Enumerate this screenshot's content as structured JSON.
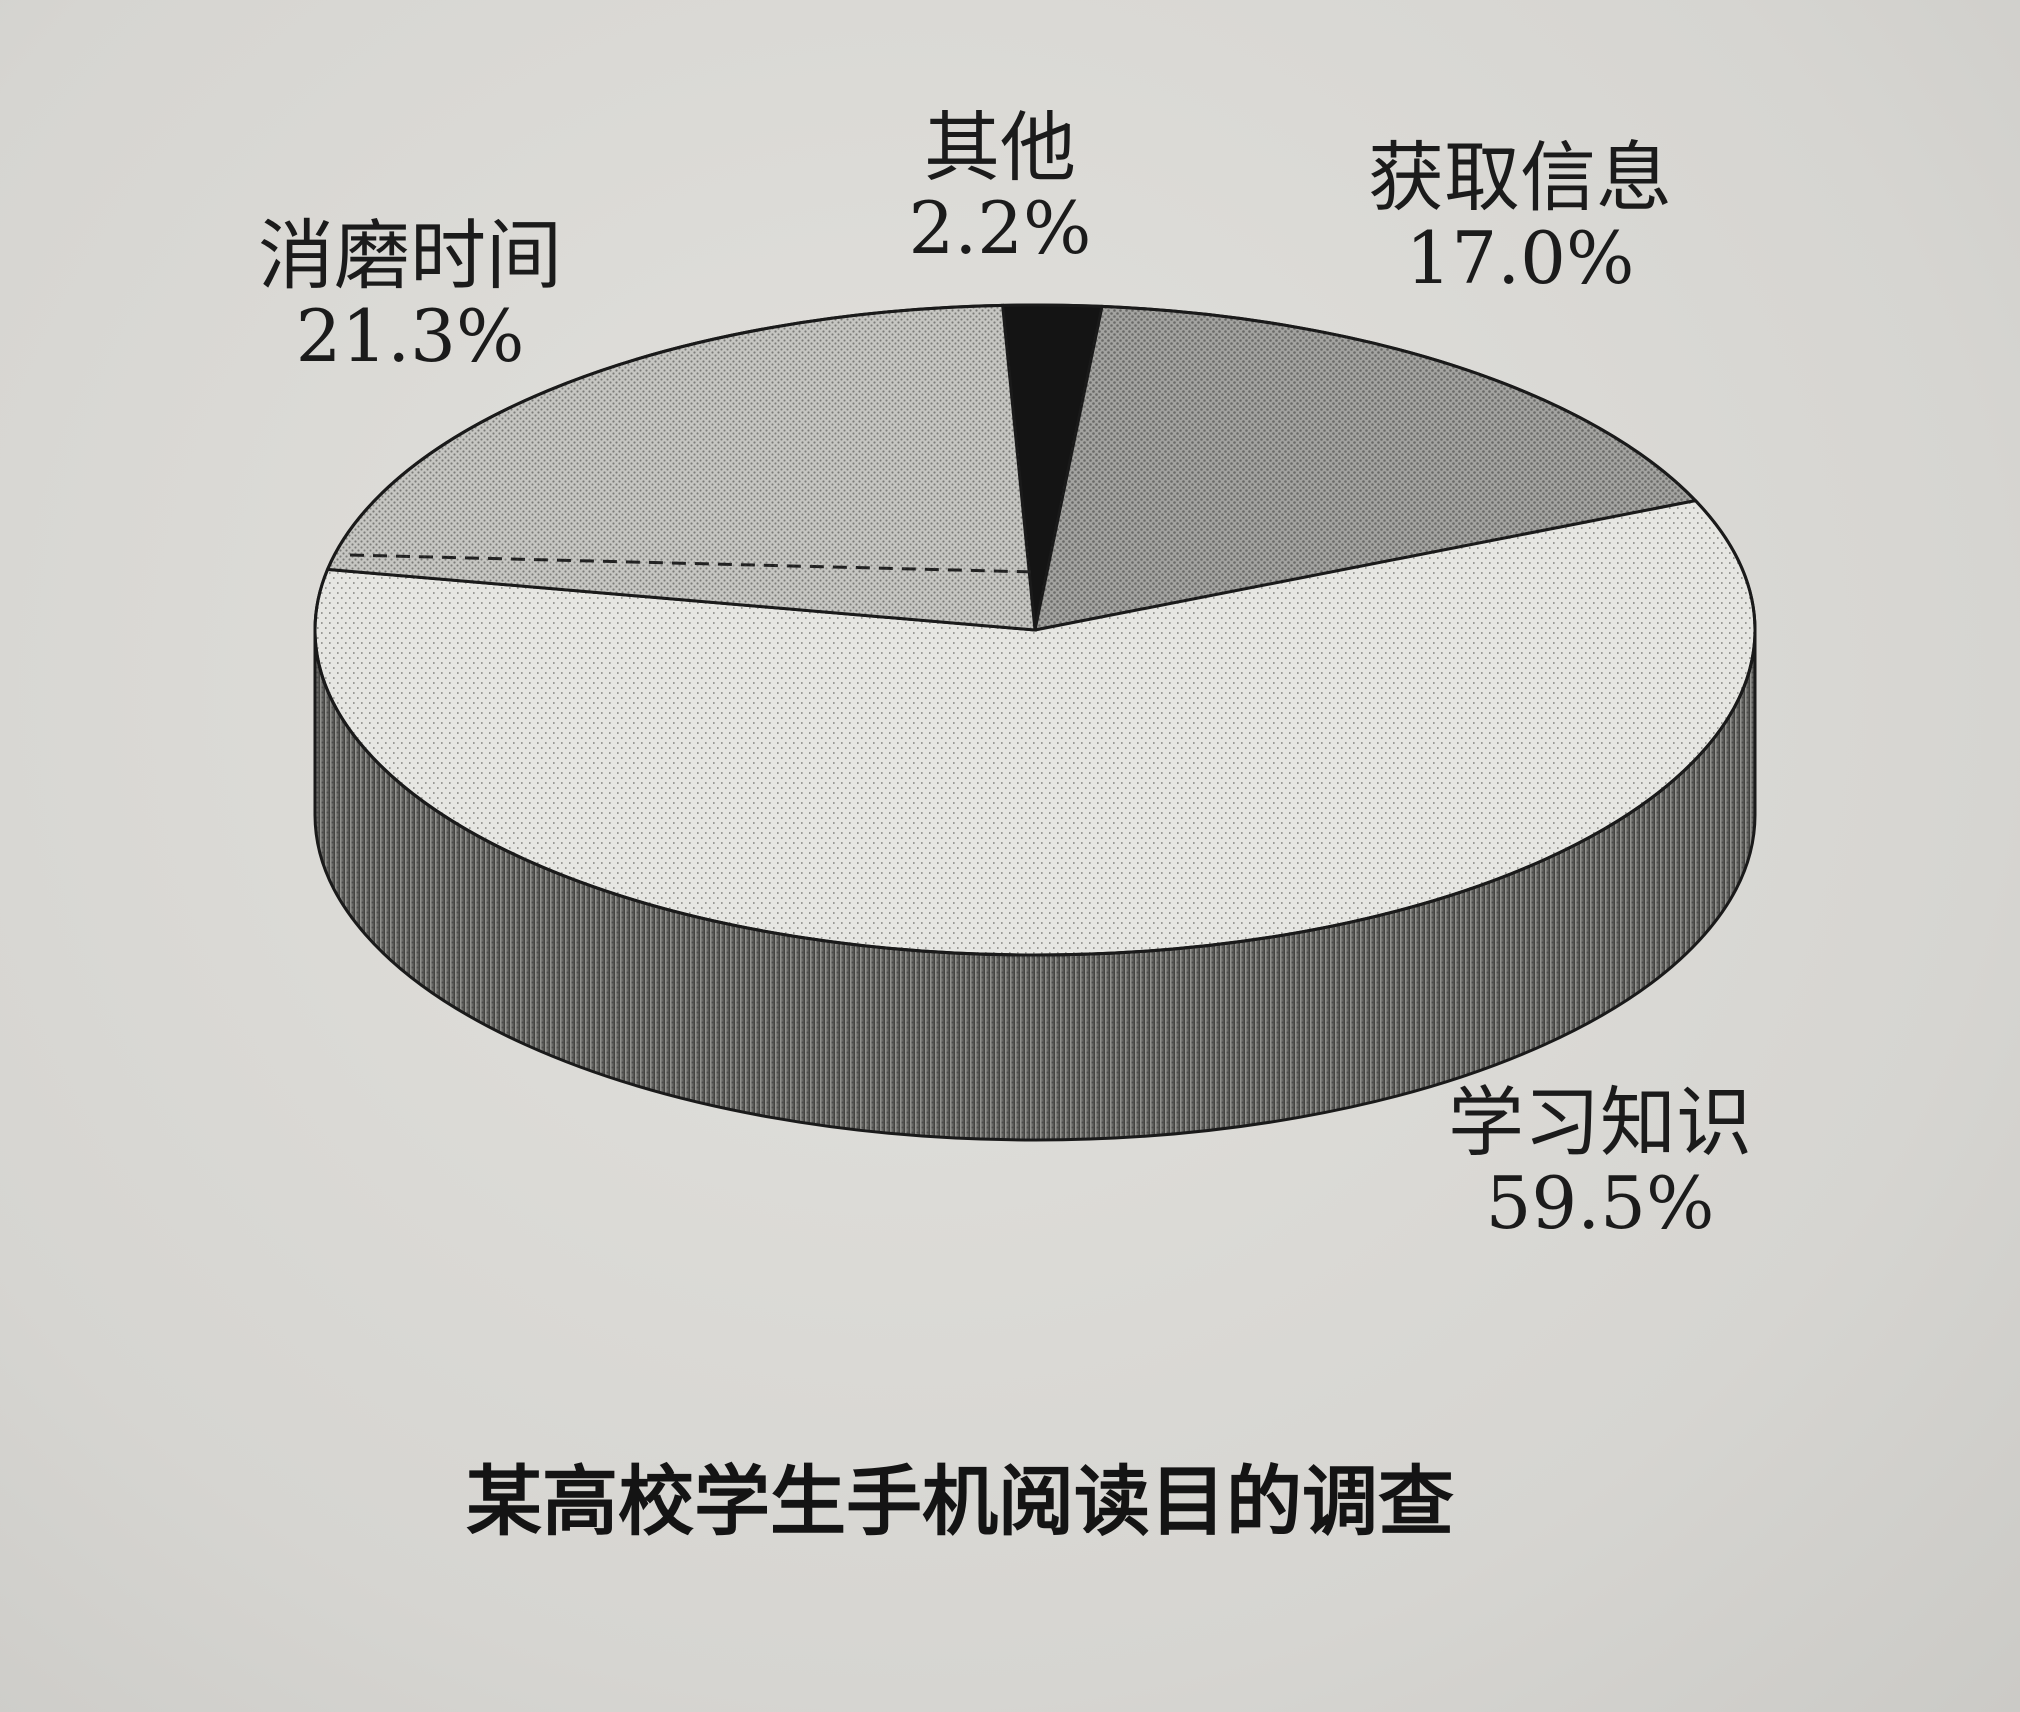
{
  "chart_data": {
    "type": "pie",
    "title": "某高校学生手机阅读目的调查",
    "slices": [
      {
        "label": "其他",
        "value": 2.2,
        "value_text": "2.2%",
        "color": "#151515"
      },
      {
        "label": "获取信息",
        "value": 17.0,
        "value_text": "17.0%",
        "color": "#8e8e8e"
      },
      {
        "label": "学习知识",
        "value": 59.5,
        "value_text": "59.5%",
        "color": "#e4e4e0"
      },
      {
        "label": "消磨时间",
        "value": 21.3,
        "value_text": "21.3%",
        "color": "#b9b9b5"
      }
    ],
    "style": "3d-pie"
  }
}
